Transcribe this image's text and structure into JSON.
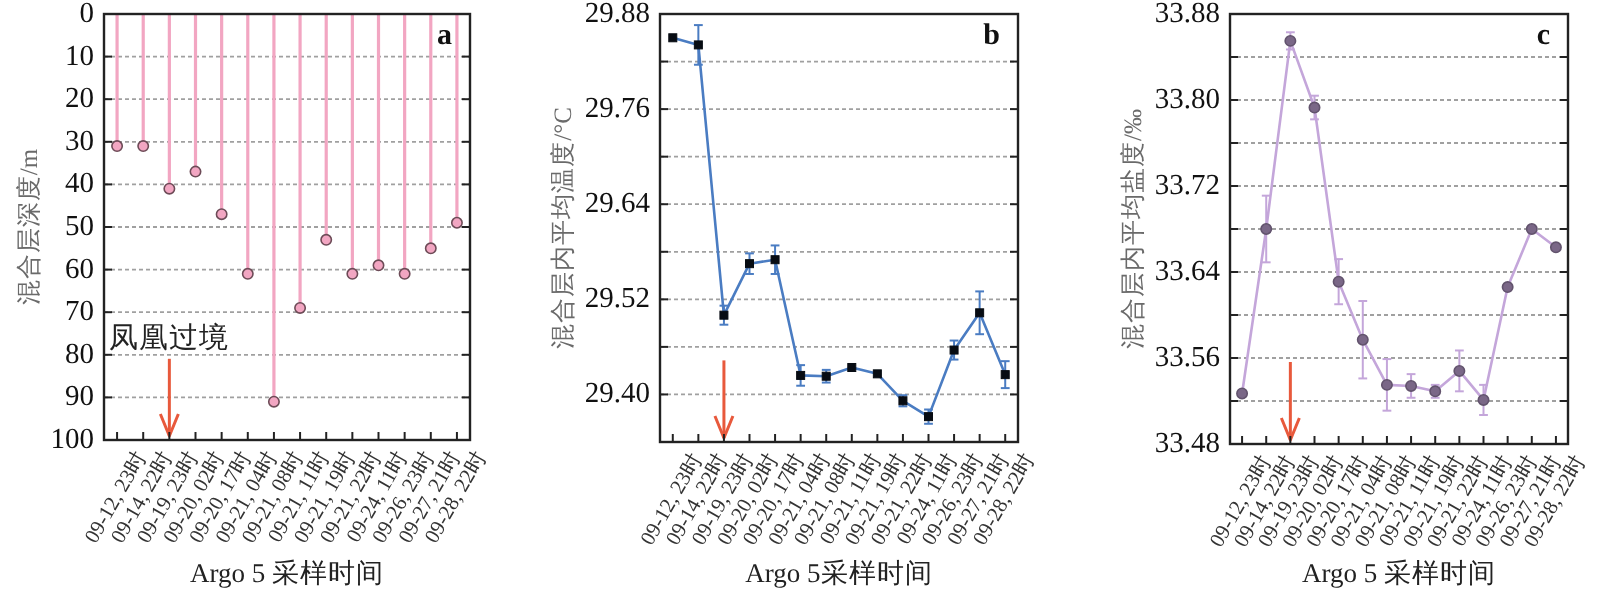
{
  "chart_data": [
    {
      "type": "lollipop",
      "title": "a",
      "xlabel": "Argo 5 采样时间",
      "ylabel": "混合层深度/m",
      "categories": [
        "09-12, 23时",
        "09-14, 22时",
        "09-19, 23时",
        "09-20, 02时",
        "09-20, 17时",
        "09-21, 04时",
        "09-21, 08时",
        "09-21, 11时",
        "09-21, 19时",
        "09-21, 22时",
        "09-24, 11时",
        "09-26, 23时",
        "09-27, 21时",
        "09-28, 22时"
      ],
      "series": [
        {
          "color": "#f2a6c2",
          "values": [
            31,
            31,
            41,
            37,
            47,
            61,
            91,
            69,
            53,
            61,
            59,
            61,
            55,
            49
          ]
        }
      ],
      "ylim": [
        100,
        0
      ],
      "yticks": [
        0,
        10,
        20,
        30,
        40,
        50,
        60,
        70,
        80,
        90,
        100
      ],
      "grid": "y",
      "marker": "circle",
      "ref_lines": [
        {
          "axis": "x",
          "value": "09-19, 23时",
          "label": "凤凰过境",
          "color": "#e8593c"
        }
      ]
    },
    {
      "type": "line",
      "title": "b",
      "xlabel": "Argo 5采样时间",
      "ylabel": "混合层内平均温度/°C",
      "categories": [
        "09-12, 23时",
        "09-14, 22时",
        "09-19, 23时",
        "09-20, 02时",
        "09-20, 17时",
        "09-21, 04时",
        "09-21, 08时",
        "09-21, 11时",
        "09-21, 19时",
        "09-21, 22时",
        "09-24, 11时",
        "09-26, 23时",
        "09-27, 21时",
        "09-28, 22时"
      ],
      "series": [
        {
          "color": "#4a7cc2",
          "values": [
            29.85,
            29.841,
            29.5,
            29.565,
            29.57,
            29.424,
            29.423,
            29.434,
            29.426,
            29.392,
            29.372,
            29.456,
            29.503,
            29.425
          ],
          "errors": [
            null,
            0.025,
            0.012,
            0.013,
            0.018,
            0.013,
            0.008,
            null,
            null,
            0.007,
            0.009,
            0.012,
            0.027,
            0.017
          ]
        }
      ],
      "ylim": [
        29.34,
        29.88
      ],
      "yticks": [
        {
          "value": 29.34,
          "label": null
        },
        {
          "value": 29.4,
          "label": "29.40"
        },
        {
          "value": 29.46,
          "label": null
        },
        {
          "value": 29.52,
          "label": "29.52"
        },
        {
          "value": 29.58,
          "label": null
        },
        {
          "value": 29.64,
          "label": "29.64"
        },
        {
          "value": 29.7,
          "label": null
        },
        {
          "value": 29.76,
          "label": "29.76"
        },
        {
          "value": 29.82,
          "label": null
        },
        {
          "value": 29.88,
          "label": "29.88"
        }
      ],
      "grid": "y",
      "marker": "square",
      "ref_lines": [
        {
          "axis": "x",
          "value": "09-19, 23时",
          "color": "#e8593c"
        }
      ]
    },
    {
      "type": "line",
      "title": "c",
      "xlabel": "Argo 5 采样时间",
      "ylabel": "混合层内平均盐度/‰",
      "categories": [
        "09-12, 23时",
        "09-14, 22时",
        "09-19, 23时",
        "09-20, 02时",
        "09-20, 17时",
        "09-21, 04时",
        "09-21, 08时",
        "09-21, 11时",
        "09-21, 19时",
        "09-21, 22时",
        "09-24, 11时",
        "09-26, 23时",
        "09-27, 21时",
        "09-28, 22时"
      ],
      "series": [
        {
          "color": "#c4a6da",
          "values": [
            33.527,
            33.68,
            33.855,
            33.793,
            33.631,
            33.577,
            33.535,
            33.534,
            33.529,
            33.548,
            33.521,
            33.626,
            33.68,
            33.663
          ],
          "errors": [
            null,
            0.031,
            0.008,
            0.011,
            0.021,
            0.036,
            0.024,
            0.011,
            0.006,
            0.019,
            0.014,
            null,
            null,
            null
          ]
        }
      ],
      "ylim": [
        33.48,
        33.88
      ],
      "yticks": [
        {
          "value": 33.48,
          "label": "33.48"
        },
        {
          "value": 33.52,
          "label": null
        },
        {
          "value": 33.56,
          "label": "33.56"
        },
        {
          "value": 33.6,
          "label": null
        },
        {
          "value": 33.64,
          "label": "33.64"
        },
        {
          "value": 33.68,
          "label": null
        },
        {
          "value": 33.72,
          "label": "33.72"
        },
        {
          "value": 33.76,
          "label": null
        },
        {
          "value": 33.8,
          "label": "33.80"
        },
        {
          "value": 33.84,
          "label": null
        },
        {
          "value": 33.88,
          "label": "33.88"
        }
      ],
      "grid": "y",
      "marker": "circle",
      "ref_lines": [
        {
          "axis": "x",
          "value": "09-19, 23时",
          "color": "#e8593c"
        }
      ]
    }
  ]
}
